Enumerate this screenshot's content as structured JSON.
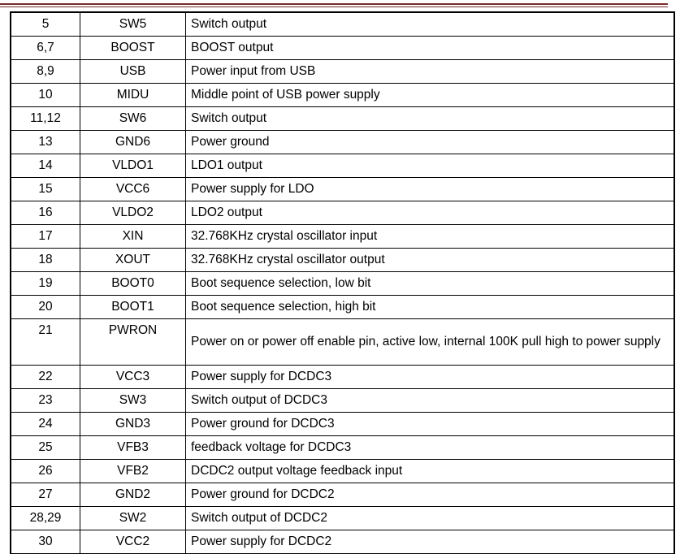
{
  "rows": [
    {
      "pin": "5",
      "name": "SW5",
      "desc": "Switch output"
    },
    {
      "pin": "6,7",
      "name": "BOOST",
      "desc": "BOOST output"
    },
    {
      "pin": "8,9",
      "name": "USB",
      "desc": "Power input from USB"
    },
    {
      "pin": "10",
      "name": "MIDU",
      "desc": "Middle point of USB power supply"
    },
    {
      "pin": "11,12",
      "name": "SW6",
      "desc": "Switch output"
    },
    {
      "pin": "13",
      "name": "GND6",
      "desc": "Power ground"
    },
    {
      "pin": "14",
      "name": "VLDO1",
      "desc": "LDO1 output"
    },
    {
      "pin": "15",
      "name": "VCC6",
      "desc": "Power supply for LDO"
    },
    {
      "pin": "16",
      "name": "VLDO2",
      "desc": "LDO2 output"
    },
    {
      "pin": "17",
      "name": "XIN",
      "desc": "32.768KHz crystal oscillator input"
    },
    {
      "pin": "18",
      "name": "XOUT",
      "desc": "32.768KHz crystal oscillator output"
    },
    {
      "pin": "19",
      "name": "BOOT0",
      "desc": "Boot sequence selection, low bit"
    },
    {
      "pin": "20",
      "name": "BOOT1",
      "desc": "Boot sequence selection, high bit"
    },
    {
      "pin": "21",
      "name": "PWRON",
      "desc": "Power on or power off enable pin, active low, internal 100K pull high to power supply"
    },
    {
      "pin": "22",
      "name": "VCC3",
      "desc": "Power supply for DCDC3"
    },
    {
      "pin": "23",
      "name": "SW3",
      "desc": "Switch output of DCDC3"
    },
    {
      "pin": "24",
      "name": "GND3",
      "desc": "Power ground for DCDC3"
    },
    {
      "pin": "25",
      "name": "VFB3",
      "desc": "feedback voltage for DCDC3"
    },
    {
      "pin": "26",
      "name": "VFB2",
      "desc": "DCDC2 output voltage feedback input"
    },
    {
      "pin": "27",
      "name": "GND2",
      "desc": "Power ground for DCDC2"
    },
    {
      "pin": "28,29",
      "name": "SW2",
      "desc": "Switch output of DCDC2"
    },
    {
      "pin": "30",
      "name": "VCC2",
      "desc": "Power supply for DCDC2"
    }
  ]
}
